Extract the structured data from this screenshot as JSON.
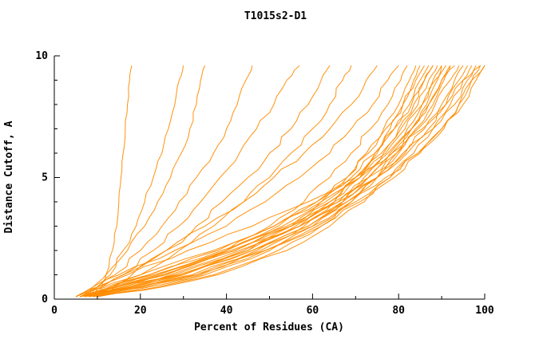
{
  "chart_data": {
    "type": "line",
    "title": "T1015s2-D1",
    "xlabel": "Percent of Residues (CA)",
    "ylabel": "Distance Cutoff, A",
    "xlim": [
      0,
      100
    ],
    "ylim": [
      0,
      10
    ],
    "x_ticks": [
      0,
      20,
      40,
      60,
      80,
      100
    ],
    "x_minor_ticks": [
      10,
      30,
      50,
      70,
      90
    ],
    "y_ticks": [
      0,
      5,
      10
    ],
    "y_minor_ticks": [
      1,
      2,
      3,
      4,
      6,
      7,
      8,
      9
    ],
    "line_color": "#FF8C00",
    "axis_color": "#000000",
    "grid": false,
    "legend": "none",
    "y_levels": [
      0.1,
      0.5,
      1,
      2,
      3,
      4,
      5,
      6,
      7,
      8,
      9,
      9.6
    ],
    "series": [
      {
        "x": [
          10,
          11,
          12,
          13.5,
          14.5,
          15,
          15.5,
          16,
          16.5,
          17,
          17.5,
          18
        ]
      },
      {
        "x": [
          8,
          10,
          13,
          16,
          19,
          21,
          23,
          25,
          26.5,
          28,
          29,
          30
        ]
      },
      {
        "x": [
          7,
          9,
          12,
          17,
          21,
          24,
          27,
          29.5,
          31.5,
          33,
          34,
          35
        ]
      },
      {
        "x": [
          7,
          10,
          14,
          20,
          25,
          29,
          33,
          37,
          40,
          42.5,
          44.5,
          46
        ]
      },
      {
        "x": [
          8,
          11,
          16,
          23,
          29,
          34,
          38.5,
          43,
          47,
          51,
          54,
          57
        ]
      },
      {
        "x": [
          9,
          13,
          18,
          26,
          33,
          39,
          45,
          50,
          55,
          59,
          62,
          64
        ]
      },
      {
        "x": [
          10,
          14,
          20,
          29,
          37,
          44,
          50,
          55,
          60,
          64,
          67,
          69
        ]
      },
      {
        "x": [
          6,
          10,
          16,
          26,
          35,
          44,
          51,
          58,
          64,
          69,
          72.5,
          75
        ]
      },
      {
        "x": [
          5,
          9,
          15,
          28,
          40,
          49,
          57,
          64,
          69,
          74,
          77.5,
          80
        ]
      },
      {
        "x": [
          6,
          16,
          26,
          40,
          50,
          58,
          64,
          69,
          73.5,
          77.5,
          80.5,
          82
        ]
      },
      {
        "x": [
          7,
          18,
          30,
          45,
          55,
          62,
          68,
          72.5,
          76.5,
          80,
          82.5,
          84
        ]
      },
      {
        "x": [
          8,
          20,
          33,
          48,
          58,
          65,
          70,
          74.5,
          78,
          81,
          83.5,
          85
        ]
      },
      {
        "x": [
          6,
          14,
          24,
          40,
          52,
          61,
          68,
          73,
          77,
          81,
          84,
          86
        ]
      },
      {
        "x": [
          7,
          17,
          29,
          45,
          56,
          64,
          70,
          75,
          79,
          82.5,
          85,
          87
        ]
      },
      {
        "x": [
          9,
          22,
          35,
          50,
          60,
          67,
          72,
          76.5,
          80,
          83.5,
          86,
          88
        ]
      },
      {
        "x": [
          5,
          12,
          22,
          38,
          51,
          61,
          69,
          74.5,
          79,
          83,
          86,
          88
        ]
      },
      {
        "x": [
          6,
          15,
          26,
          42,
          55,
          64,
          71,
          76,
          80.5,
          84.5,
          87,
          89
        ]
      },
      {
        "x": [
          8,
          19,
          32,
          47,
          59,
          67,
          73,
          78,
          82,
          85.5,
          88,
          90
        ]
      },
      {
        "x": [
          10,
          24,
          37,
          52,
          62,
          69,
          75,
          79.5,
          83,
          86.5,
          89,
          90
        ]
      },
      {
        "x": [
          6,
          13,
          23,
          40,
          53,
          63,
          71,
          77,
          81.5,
          85.5,
          88.5,
          91
        ]
      },
      {
        "x": [
          7,
          16,
          28,
          44,
          57,
          66,
          73,
          78.5,
          83,
          87,
          90,
          92
        ]
      },
      {
        "x": [
          9,
          21,
          34,
          49,
          61,
          69,
          75,
          80,
          84,
          88,
          90.5,
          92
        ]
      },
      {
        "x": [
          5,
          11,
          20,
          37,
          51,
          62,
          71,
          77.5,
          83,
          87,
          90,
          93
        ]
      },
      {
        "x": [
          6,
          14,
          24,
          41,
          55,
          65,
          73,
          79.5,
          84.5,
          88.5,
          92,
          94
        ]
      },
      {
        "x": [
          8,
          18,
          30,
          46,
          59,
          68,
          75,
          81,
          86,
          90,
          93,
          95
        ]
      },
      {
        "x": [
          7,
          16,
          27,
          43,
          57,
          67,
          75,
          81.5,
          87,
          91,
          94,
          96
        ]
      },
      {
        "x": [
          9,
          20,
          33,
          49,
          62,
          71,
          78,
          83.5,
          88,
          92,
          95,
          97
        ]
      },
      {
        "x": [
          6,
          13,
          22,
          39,
          54,
          66,
          75,
          82,
          88,
          93,
          96,
          98
        ]
      },
      {
        "x": [
          8,
          17,
          29,
          46,
          60,
          70,
          78,
          84.5,
          90,
          94,
          97,
          99
        ]
      },
      {
        "x": [
          7,
          14,
          25,
          42,
          57,
          68,
          77,
          84.5,
          90.5,
          95,
          98,
          100
        ]
      },
      {
        "x": [
          10,
          25,
          38,
          54,
          64,
          72,
          79,
          85,
          90,
          94,
          97,
          100
        ]
      },
      {
        "x": [
          5,
          10,
          17,
          31,
          46,
          59,
          70,
          78.5,
          85.5,
          91,
          95,
          99
        ]
      }
    ]
  }
}
